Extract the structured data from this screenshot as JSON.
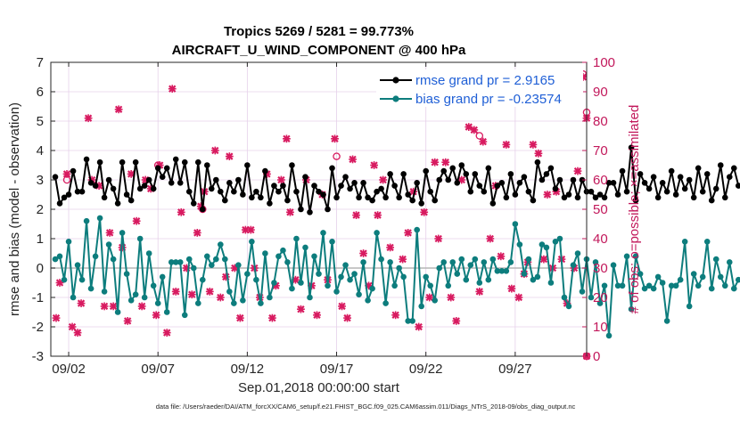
{
  "chart_data": {
    "type": "line",
    "title_line1": "Tropics 5269 / 5281 = 99.773%",
    "title_line2": "AIRCRAFT_U_WIND_COMPONENT @ 400 hPa",
    "xlabel": "Sep.01,2018 00:00:00 start",
    "ylabel": "rmse and bias (model - observation)",
    "ylabel_right": "# of obs: o=possible; ×=assimilated",
    "footer": "data file: /Users/raeder/DAI/ATM_forcXX/CAM6_setup/f.e21.FHIST_BGC.f09_025.CAM6assim.011/Diags_NTrS_2018-09/obs_diag_output.nc",
    "xlim": [
      1,
      31
    ],
    "ylim": [
      -3,
      7
    ],
    "ylim_right": [
      0,
      100
    ],
    "x_ticks": [
      2,
      7,
      12,
      17,
      22,
      27
    ],
    "x_tick_labels": [
      "09/02",
      "09/07",
      "09/12",
      "09/17",
      "09/22",
      "09/27"
    ],
    "y_ticks": [
      -3,
      -2,
      -1,
      0,
      1,
      2,
      3,
      4,
      5,
      6,
      7
    ],
    "y_tick_labels": [
      "-3",
      "-2",
      "-1",
      "0",
      "1",
      "2",
      "3",
      "4",
      "5",
      "6",
      "7"
    ],
    "y_right_ticks": [
      0,
      10,
      20,
      30,
      40,
      50,
      60,
      70,
      80,
      90,
      100
    ],
    "y_right_tick_labels": [
      "0",
      "10",
      "20",
      "30",
      "40",
      "50",
      "60",
      "70",
      "80",
      "90",
      "100"
    ],
    "x_start": 1.25,
    "x_step": 0.25,
    "series": [
      {
        "name": "rmse grand pr = 2.9165",
        "color": "#000000",
        "values": [
          3.1,
          2.2,
          2.4,
          2.5,
          3.3,
          2.6,
          2.6,
          3.7,
          2.9,
          2.8,
          3.6,
          2.4,
          3.0,
          2.7,
          2.2,
          3.6,
          2.5,
          2.3,
          3.6,
          2.7,
          2.8,
          3.0,
          2.7,
          3.4,
          3.1,
          3.4,
          2.9,
          3.7,
          2.9,
          3.6,
          2.6,
          2.2,
          3.6,
          2.0,
          3.5,
          2.7,
          3.0,
          2.6,
          2.3,
          2.9,
          2.6,
          3.0,
          2.5,
          3.5,
          2.4,
          2.6,
          2.4,
          3.3,
          2.2,
          2.8,
          2.6,
          2.8,
          2.3,
          3.5,
          2.6,
          2.0,
          3.1,
          1.9,
          2.8,
          2.6,
          2.5,
          2.0,
          3.4,
          2.4,
          2.8,
          3.1,
          2.7,
          2.9,
          2.4,
          2.9,
          2.4,
          2.3,
          2.6,
          2.7,
          2.4,
          3.2,
          2.8,
          2.4,
          3.2,
          2.5,
          2.3,
          2.9,
          2.2,
          3.3,
          2.6,
          2.3,
          3.0,
          3.3,
          3.0,
          3.4,
          2.9,
          3.5,
          3.2,
          2.6,
          3.2,
          2.8,
          2.6,
          3.4,
          2.2,
          2.8,
          2.9,
          2.4,
          3.2,
          2.5,
          2.9,
          3.1,
          2.6,
          2.3,
          3.6,
          3.0,
          3.2,
          3.4,
          2.7,
          3.0,
          2.4,
          2.5,
          3.0,
          2.4,
          3.0,
          2.6,
          2.6,
          2.4,
          2.5,
          2.4,
          2.9,
          2.9,
          2.5,
          3.3,
          2.6,
          4.1,
          2.3,
          3.2,
          2.9,
          2.7,
          3.1,
          2.4,
          2.9,
          2.6,
          3.3,
          2.5,
          3.1,
          2.7,
          3.0,
          2.4,
          3.4,
          2.6,
          3.2,
          2.3,
          2.7,
          3.5,
          2.4,
          3.1,
          3.4,
          2.8,
          2.8,
          3.0,
          3.4,
          3.7,
          3.2,
          2.6,
          3.4,
          1.9,
          3.6,
          2.8,
          3.2,
          2.6,
          3.0,
          2.4,
          3.1,
          2.8,
          3.4,
          3.1,
          2.6,
          3.5,
          3.3,
          2.7,
          3.4,
          3.0,
          2.9,
          2.4,
          2.9,
          2.9,
          2.8,
          2.4,
          3.0,
          3.2,
          3.3
        ]
      },
      {
        "name": "bias grand pr = -0.23574",
        "color": "#0d7d7d",
        "values": [
          0.3,
          0.4,
          -0.4,
          0.9,
          -1.0,
          0.1,
          -0.4,
          1.6,
          -0.7,
          0.4,
          1.7,
          -0.8,
          0.8,
          0.3,
          -1.5,
          1.2,
          -0.2,
          -1.1,
          -0.9,
          1.0,
          -1.0,
          0.5,
          -0.6,
          -1.2,
          -0.3,
          -1.5,
          0.2,
          0.2,
          0.2,
          -1.6,
          0.3,
          0.0,
          -1.2,
          -0.4,
          0.4,
          0.1,
          0.3,
          0.8,
          0.3,
          -0.8,
          -1.2,
          0.1,
          -1.1,
          -0.2,
          0.9,
          -0.4,
          -1.2,
          0.5,
          -1.0,
          -0.5,
          0.4,
          0.6,
          0.2,
          -0.7,
          1.0,
          -0.5,
          0.7,
          -1.0,
          0.4,
          -0.2,
          1.2,
          -0.6,
          0.9,
          -0.8,
          -0.3,
          0.1,
          -0.4,
          -0.2,
          -0.9,
          0.2,
          -1.1,
          -0.7,
          1.2,
          0.3,
          -1.2,
          0.2,
          -0.6,
          0.0,
          -0.3,
          -1.8,
          -1.8,
          1.3,
          -1.3,
          -0.3,
          -0.6,
          -1.1,
          0.0,
          0.2,
          -0.6,
          0.2,
          -0.2,
          0.3,
          -0.4,
          0.1,
          0.3,
          -0.5,
          0.2,
          -0.4,
          0.3,
          -0.1,
          -0.1,
          -0.1,
          0.2,
          1.5,
          0.8,
          -0.2,
          0.3,
          -0.4,
          -0.3,
          0.8,
          0.7,
          -0.5,
          0.9,
          1.0,
          -1.0,
          -1.3,
          0.1,
          0.5,
          -0.8,
          0.3,
          -1.0,
          0.2,
          -1.2,
          -0.6,
          -2.3,
          0.1,
          -0.6,
          -0.6,
          0.4,
          -1.4,
          0.4,
          -0.2,
          -0.7,
          -0.6,
          -0.7,
          -0.3,
          -0.5,
          -1.8,
          -0.6,
          -0.6,
          -0.4,
          0.9,
          -1.3,
          -0.2,
          -0.6,
          -0.3,
          0.9,
          -0.7,
          0.3,
          -0.3,
          -0.6,
          0.2,
          -0.7,
          -0.4,
          -0.4,
          -0.6,
          -0.2,
          -0.4,
          -0.3,
          0.1,
          0.1,
          -0.7,
          -0.2,
          -0.6,
          -0.5,
          -0.3,
          0.0,
          0.3,
          0.2,
          -0.4,
          0.1,
          0.3,
          -0.4,
          -0.5,
          0.4,
          0.8,
          0.2,
          0.1
        ]
      }
    ],
    "obs_assimilated": {
      "marker": "×",
      "color": "#d81b60",
      "points": [
        [
          1.3,
          13
        ],
        [
          1.5,
          25
        ],
        [
          1.9,
          62
        ],
        [
          2.2,
          10
        ],
        [
          2.5,
          8
        ],
        [
          2.7,
          18
        ],
        [
          3.1,
          81
        ],
        [
          3.3,
          60
        ],
        [
          3.7,
          58
        ],
        [
          4.0,
          17
        ],
        [
          4.3,
          42
        ],
        [
          4.5,
          17
        ],
        [
          4.8,
          84
        ],
        [
          5.0,
          37
        ],
        [
          5.3,
          12
        ],
        [
          5.5,
          62
        ],
        [
          5.8,
          46
        ],
        [
          6.1,
          17
        ],
        [
          6.3,
          60
        ],
        [
          6.6,
          57
        ],
        [
          6.9,
          14
        ],
        [
          7.1,
          65
        ],
        [
          7.5,
          8
        ],
        [
          7.8,
          91
        ],
        [
          8.0,
          22
        ],
        [
          8.3,
          49
        ],
        [
          8.6,
          30
        ],
        [
          8.9,
          21
        ],
        [
          9.2,
          42
        ],
        [
          9.4,
          51
        ],
        [
          9.6,
          56
        ],
        [
          9.9,
          22
        ],
        [
          10.2,
          70
        ],
        [
          10.5,
          20
        ],
        [
          10.8,
          27
        ],
        [
          11.0,
          68
        ],
        [
          11.3,
          30
        ],
        [
          11.6,
          13
        ],
        [
          11.9,
          43
        ],
        [
          12.2,
          43
        ],
        [
          12.4,
          30
        ],
        [
          12.7,
          20
        ],
        [
          13.1,
          62
        ],
        [
          13.4,
          13
        ],
        [
          13.6,
          24
        ],
        [
          13.9,
          60
        ],
        [
          14.2,
          74
        ],
        [
          14.4,
          49
        ],
        [
          14.7,
          26
        ],
        [
          15.0,
          16
        ],
        [
          15.3,
          60
        ],
        [
          15.6,
          24
        ],
        [
          15.9,
          14
        ],
        [
          16.2,
          55
        ],
        [
          16.5,
          26
        ],
        [
          16.9,
          74
        ],
        [
          17.3,
          17
        ],
        [
          17.6,
          13
        ],
        [
          17.9,
          67
        ],
        [
          18.1,
          48
        ],
        [
          18.5,
          35
        ],
        [
          18.8,
          24
        ],
        [
          19.1,
          65
        ],
        [
          19.3,
          48
        ],
        [
          19.6,
          60
        ],
        [
          20.0,
          37
        ],
        [
          20.3,
          14
        ],
        [
          20.7,
          33
        ],
        [
          21.0,
          42
        ],
        [
          21.3,
          56
        ],
        [
          21.6,
          10
        ],
        [
          21.9,
          49
        ],
        [
          22.2,
          20
        ],
        [
          22.5,
          66
        ],
        [
          22.7,
          40
        ],
        [
          23.1,
          66
        ],
        [
          23.4,
          20
        ],
        [
          23.7,
          12
        ],
        [
          24.0,
          60
        ],
        [
          24.4,
          78
        ],
        [
          24.7,
          77
        ],
        [
          25.0,
          22
        ],
        [
          25.2,
          73
        ],
        [
          25.6,
          40
        ],
        [
          25.9,
          58
        ],
        [
          26.2,
          34
        ],
        [
          26.5,
          72
        ],
        [
          26.8,
          23
        ],
        [
          27.2,
          20
        ],
        [
          27.5,
          28
        ],
        [
          27.7,
          32
        ],
        [
          28.0,
          72
        ],
        [
          28.3,
          69
        ],
        [
          28.6,
          33
        ],
        [
          28.8,
          55
        ],
        [
          29.1,
          30
        ],
        [
          29.3,
          56
        ],
        [
          29.6,
          33
        ],
        [
          29.9,
          18
        ],
        [
          30.3,
          30
        ],
        [
          30.5,
          63
        ],
        [
          30.8,
          95
        ],
        [
          31.0,
          81
        ],
        [
          31.0,
          0
        ]
      ]
    },
    "obs_possible": {
      "marker": "o",
      "color": "#d81b60",
      "points": [
        [
          1.9,
          60
        ],
        [
          7.0,
          65
        ],
        [
          9.5,
          50
        ],
        [
          17.0,
          68
        ],
        [
          25.0,
          75
        ],
        [
          30.8,
          96
        ],
        [
          31.0,
          83
        ],
        [
          31.0,
          0
        ]
      ]
    }
  }
}
